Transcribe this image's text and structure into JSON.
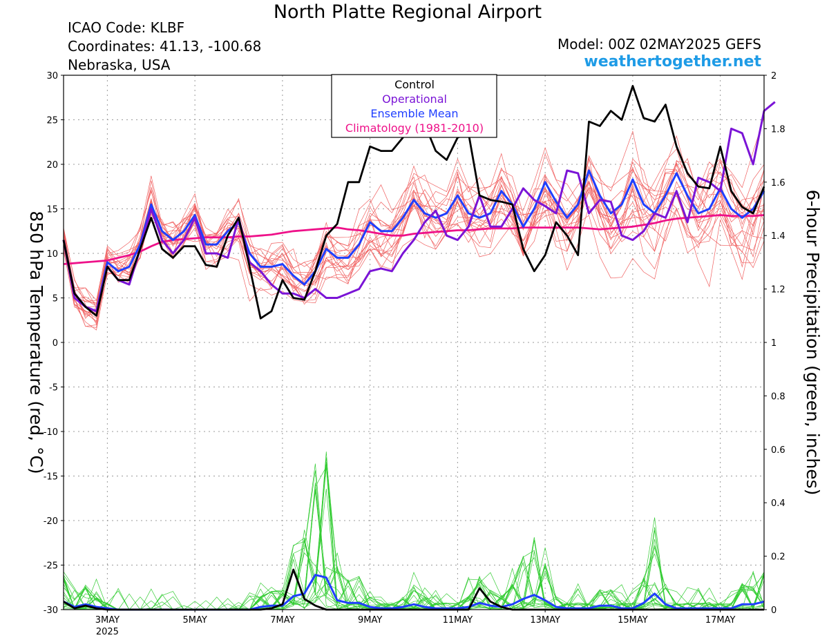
{
  "header": {
    "title": "North Platte Regional Airport",
    "icao": "ICAO Code: KLBF",
    "coordinates": "Coordinates: 41.13, -100.68",
    "region": "Nebraska, USA",
    "model": "Model: 00Z 02MAY2025 GEFS",
    "site": "weathertogether.net"
  },
  "colors": {
    "control": "#000000",
    "operational": "#7a14d6",
    "ensemble_mean": "#1f3fff",
    "climatology": "#ee1189",
    "members_temp": "#f06060",
    "members_precip": "#33cc33",
    "site": "#1e9be6"
  },
  "chart_data": {
    "type": "line",
    "title": "North Platte Regional Airport",
    "ylabel_left": "850 hPa Temperature (red, °C)",
    "ylabel_right": "6-hour Precipitation (green, inches)",
    "ylim_left": [
      -30,
      30
    ],
    "ylim_right": [
      0,
      2
    ],
    "yticks_left": [
      "30",
      "25",
      "20",
      "15",
      "10",
      "5",
      "0",
      "-5",
      "-10",
      "-15",
      "-20",
      "-25",
      "-30"
    ],
    "yticks_right": [
      "2",
      "1.8",
      "1.6",
      "1.4",
      "1.2",
      "1",
      "0.8",
      "0.6",
      "0.4",
      "0.2",
      "0"
    ],
    "xticks": [
      {
        "label": "3MAY",
        "sub": "2025",
        "day": 3
      },
      {
        "label": "5MAY",
        "sub": "",
        "day": 5
      },
      {
        "label": "7MAY",
        "sub": "",
        "day": 7
      },
      {
        "label": "9MAY",
        "sub": "",
        "day": 9
      },
      {
        "label": "11MAY",
        "sub": "",
        "day": 11
      },
      {
        "label": "13MAY",
        "sub": "",
        "day": 13
      },
      {
        "label": "15MAY",
        "sub": "",
        "day": 15
      },
      {
        "label": "17MAY",
        "sub": "",
        "day": 17
      }
    ],
    "x_start_day": 2.0,
    "x_end_day": 18.0,
    "step_days": 0.25,
    "grid": true,
    "legend": {
      "position": "top-center",
      "entries": [
        "Control",
        "Operational",
        "Ensemble Mean",
        "Climatology (1981-2010)"
      ]
    },
    "series": [
      {
        "name": "Control",
        "axis": "left",
        "values": [
          11.5,
          5.5,
          4,
          3,
          8.5,
          7,
          7,
          10.5,
          14,
          10.5,
          9.5,
          10.8,
          10.8,
          8.7,
          8.5,
          12,
          14,
          8.5,
          2.7,
          3.5,
          7,
          5,
          4.8,
          8,
          12,
          13.3,
          18,
          18,
          22,
          21.5,
          21.5,
          23,
          25,
          24.5,
          21.5,
          20.5,
          23,
          23.5,
          16.5,
          16,
          15.8,
          15.5,
          10.5,
          8,
          9.8,
          13.5,
          12,
          9.8,
          24.8,
          24.3,
          26,
          25,
          28.8,
          25.2,
          24.8,
          26.7,
          22,
          19,
          17.5,
          17.3,
          22,
          17,
          15.2,
          14.5,
          17.5
        ]
      },
      {
        "name": "Operational",
        "axis": "left",
        "values": [
          11.5,
          5,
          4,
          3.5,
          8.5,
          7,
          6.5,
          10.5,
          15,
          11.5,
          10,
          11.5,
          14,
          10,
          10,
          9.5,
          14,
          9,
          8,
          6.5,
          5.5,
          5.5,
          5,
          6,
          5,
          5,
          5.5,
          6,
          8,
          8.3,
          8,
          10,
          11.5,
          13.5,
          14.8,
          12,
          11.5,
          13,
          16.5,
          13,
          13,
          15,
          17.3,
          16,
          15.3,
          14.5,
          19.3,
          19,
          14.5,
          16,
          15.8,
          12,
          11.5,
          12.5,
          14.5,
          14,
          17,
          13.5,
          18.5,
          18,
          17,
          24,
          23.5,
          20,
          26,
          27
        ]
      },
      {
        "name": "Ensemble Mean",
        "axis": "left",
        "values": [
          11.5,
          5.5,
          4,
          3.5,
          9,
          8,
          8.5,
          11,
          15.5,
          12.5,
          11.5,
          12.5,
          14.3,
          11,
          11,
          12.5,
          13.5,
          10,
          8.5,
          8.5,
          8.8,
          7.5,
          6.5,
          8,
          10.5,
          9.5,
          9.5,
          11,
          13.5,
          12.5,
          12.5,
          14,
          16,
          14.5,
          14,
          14.5,
          16.5,
          14.5,
          14,
          14.5,
          17,
          15.5,
          13,
          15,
          18,
          15.8,
          14,
          15.5,
          19.3,
          16.5,
          14.5,
          15.5,
          18.3,
          15.5,
          14.5,
          16.5,
          19,
          16.5,
          14.5,
          15,
          17.3,
          15,
          14,
          15,
          17
        ]
      },
      {
        "name": "Climatology (1981-2010)",
        "axis": "left",
        "values": [
          8.8,
          8.9,
          9.0,
          9.1,
          9.2,
          9.5,
          9.8,
          10.2,
          10.8,
          11.3,
          11.5,
          11.6,
          11.7,
          11.8,
          11.8,
          11.8,
          11.9,
          11.9,
          12.0,
          12.1,
          12.3,
          12.5,
          12.6,
          12.7,
          12.8,
          12.9,
          12.7,
          12.6,
          12.4,
          12.2,
          12.0,
          12.0,
          12.2,
          12.3,
          12.4,
          12.5,
          12.6,
          12.6,
          12.7,
          12.8,
          12.8,
          12.8,
          12.9,
          12.9,
          12.9,
          12.9,
          12.9,
          12.9,
          12.8,
          12.7,
          12.8,
          12.9,
          13.0,
          13.2,
          13.4,
          13.7,
          13.9,
          14.0,
          14.1,
          14.2,
          14.3,
          14.2,
          14.2,
          14.2,
          14.3
        ]
      },
      {
        "name": "Control precip",
        "axis": "right",
        "values": [
          0.03,
          0.005,
          0.015,
          0.005,
          0,
          0,
          0,
          0,
          0,
          0,
          0,
          0,
          0,
          0,
          0,
          0,
          0,
          0,
          0,
          0.005,
          0.02,
          0.15,
          0.04,
          0.015,
          0,
          0,
          0,
          0,
          0,
          0,
          0,
          0,
          0,
          0,
          0,
          0,
          0,
          0,
          0.08,
          0.03,
          0.01,
          0,
          0,
          0,
          0,
          0,
          0,
          0,
          0,
          0,
          0,
          0,
          0,
          0,
          0,
          0,
          0,
          0,
          0,
          0,
          0,
          0,
          0,
          0,
          0
        ]
      },
      {
        "name": "Ensemble Mean precip",
        "axis": "right",
        "values": [
          0.03,
          0.01,
          0.02,
          0.01,
          0.005,
          0,
          0,
          0,
          0,
          0,
          0,
          0,
          0,
          0,
          0,
          0,
          0,
          0,
          0.01,
          0.015,
          0.015,
          0.05,
          0.06,
          0.13,
          0.12,
          0.035,
          0.025,
          0.025,
          0.01,
          0.005,
          0.005,
          0.01,
          0.02,
          0.01,
          0.005,
          0.005,
          0.005,
          0.01,
          0.025,
          0.015,
          0.01,
          0.02,
          0.04,
          0.055,
          0.035,
          0.01,
          0.005,
          0.005,
          0.005,
          0.015,
          0.015,
          0.005,
          0.005,
          0.025,
          0.06,
          0.02,
          0.005,
          0.005,
          0.005,
          0.005,
          0.005,
          0.005,
          0.02,
          0.02,
          0.03
        ]
      }
    ]
  }
}
